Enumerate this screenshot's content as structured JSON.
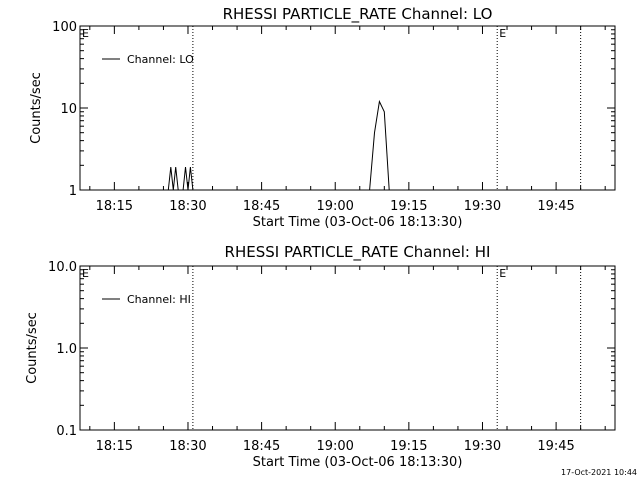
{
  "footer_timestamp": "17-Oct-2021 10:44",
  "chart_data": [
    {
      "type": "line",
      "title": "RHESSI PARTICLE_RATE Channel: LO",
      "xlabel": "Start Time (03-Oct-06 18:13:30)",
      "ylabel": "Counts/sec",
      "yscale": "log",
      "ylim": [
        1,
        100
      ],
      "xlim_minutes": [
        "18:08",
        "19:57"
      ],
      "x_ticks": [
        "18:15",
        "18:30",
        "18:45",
        "19:00",
        "19:15",
        "19:30",
        "19:45"
      ],
      "y_ticks": [
        "1",
        "10",
        "100"
      ],
      "legend": {
        "position": "top-left",
        "entries": [
          "Channel: LO"
        ]
      },
      "marker_lines": [
        {
          "time": "18:31",
          "label": ""
        },
        {
          "time": "19:33",
          "label": "E"
        },
        {
          "time": "19:50",
          "label": ""
        }
      ],
      "corner_label": "E",
      "series": [
        {
          "name": "Channel: LO",
          "points": [
            [
              "18:08",
              1
            ],
            [
              "18:26",
              1
            ],
            [
              "18:26.5",
              1.9
            ],
            [
              "18:27",
              1
            ],
            [
              "18:27.5",
              1.9
            ],
            [
              "18:28",
              1
            ],
            [
              "18:29",
              1
            ],
            [
              "18:29.5",
              1.9
            ],
            [
              "18:30",
              1
            ],
            [
              "18:30.5",
              1.9
            ],
            [
              "18:31",
              1
            ],
            [
              "19:07",
              1
            ],
            [
              "19:08",
              5
            ],
            [
              "19:09",
              12
            ],
            [
              "19:10",
              9
            ],
            [
              "19:11",
              1
            ],
            [
              "19:57",
              1
            ]
          ]
        }
      ]
    },
    {
      "type": "line",
      "title": "RHESSI PARTICLE_RATE Channel: HI",
      "xlabel": "Start Time (03-Oct-06 18:13:30)",
      "ylabel": "Counts/sec",
      "yscale": "log",
      "ylim": [
        0.1,
        10
      ],
      "xlim_minutes": [
        "18:08",
        "19:57"
      ],
      "x_ticks": [
        "18:15",
        "18:30",
        "18:45",
        "19:00",
        "19:15",
        "19:30",
        "19:45"
      ],
      "y_ticks": [
        "0.1",
        "1.0",
        "10.0"
      ],
      "legend": {
        "position": "top-left",
        "entries": [
          "Channel: HI"
        ]
      },
      "marker_lines": [
        {
          "time": "18:31",
          "label": ""
        },
        {
          "time": "19:33",
          "label": "E"
        },
        {
          "time": "19:50",
          "label": ""
        }
      ],
      "corner_label": "E",
      "series": [
        {
          "name": "Channel: HI",
          "points": []
        }
      ]
    }
  ]
}
